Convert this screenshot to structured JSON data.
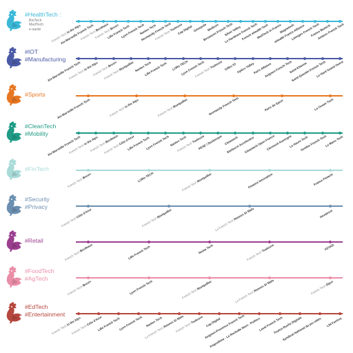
{
  "rows": [
    {
      "color": "#3bb8d8",
      "title": "#HealthTech :",
      "sub": [
        "BioTech",
        "MedTech",
        "e-santé"
      ],
      "labels": [
        {
          "pre": "French Tech",
          "name": "in the Alps"
        },
        {
          "pre": "",
          "name": "Aix-Marseille French Tech"
        },
        {
          "pre": "French Tech",
          "name": "Bordeaux"
        },
        {
          "pre": "French Tech",
          "name": "Brest+"
        },
        {
          "pre": "",
          "name": "Lille French Tech"
        },
        {
          "pre": "",
          "name": "Lyon French Tech"
        },
        {
          "pre": "",
          "name": "Nantes Tech"
        },
        {
          "pre": "",
          "name": "Normandy French Tech"
        },
        {
          "pre": "French Tech",
          "name": "Toulouse"
        },
        {
          "pre": "",
          "name": "Cap Digital"
        },
        {
          "pre": "",
          "name": "Génopole"
        },
        {
          "pre": "",
          "name": "Medicen"
        },
        {
          "pre": "",
          "name": "Besançon French Tech"
        },
        {
          "pre": "",
          "name": "Silver Valley"
        },
        {
          "pre": "",
          "name": "Le Hardware French Tech"
        },
        {
          "pre": "",
          "name": "French eHealth Tech"
        },
        {
          "pre": "",
          "name": "MedTech in France"
        },
        {
          "pre": "",
          "name": "Magnetech"
        },
        {
          "pre": "",
          "name": "eHealth France Alliance"
        },
        {
          "pre": "",
          "name": "Limoges French Tech"
        },
        {
          "pre": "",
          "name": "France Biotech"
        },
        {
          "pre": "",
          "name": "Amiens French Tech"
        }
      ]
    },
    {
      "color": "#4a5aa6",
      "title": "#IOT",
      "title2": "#Manufacturing",
      "labels": [
        {
          "pre": "",
          "name": "Aix-Marseille French Tech"
        },
        {
          "pre": "French Tech",
          "name": "in the Alps"
        },
        {
          "pre": "French Tech",
          "name": "Brest+"
        },
        {
          "pre": "French Tech",
          "name": "Montpellier"
        },
        {
          "pre": "",
          "name": "Nantes Tech"
        },
        {
          "pre": "",
          "name": "Lille French Tech"
        },
        {
          "pre": "",
          "name": "LORn TECH"
        },
        {
          "pre": "",
          "name": "Lyon French Tech"
        },
        {
          "pre": "French Tech",
          "name": "Toulouse"
        },
        {
          "pre": "",
          "name": "Gilles IO"
        },
        {
          "pre": "",
          "name": "Optics Valley"
        },
        {
          "pre": "",
          "name": "Paris Alliance"
        },
        {
          "pre": "",
          "name": "Avignon French Tech"
        },
        {
          "pre": "",
          "name": "Saint-Etienne"
        },
        {
          "pre": "",
          "name": "Saint-Quentin French Tech"
        },
        {
          "pre": "",
          "name": "Le Hard Grand Ouest"
        }
      ]
    },
    {
      "color": "#e87722",
      "title": "#Sports",
      "labels": [
        {
          "pre": "",
          "name": "Aix-Marseille French Tech"
        },
        {
          "pre": "French Tech",
          "name": "in the Alps"
        },
        {
          "pre": "French Tech",
          "name": "Montpellier"
        },
        {
          "pre": "",
          "name": "Normandy French Tech"
        },
        {
          "pre": "",
          "name": "Paris du Sport"
        },
        {
          "pre": "",
          "name": "La Ocean Tech"
        }
      ]
    },
    {
      "color": "#1f9b85",
      "title": "#CleanTech",
      "title2": "#Mobility",
      "labels": [
        {
          "pre": "",
          "name": "Aix-Marseille French Tech"
        },
        {
          "pre": "French Tech",
          "name": "in the Alps"
        },
        {
          "pre": "French Tech",
          "name": "Bordeaux"
        },
        {
          "pre": "French Tech",
          "name": "Côte d'Azur"
        },
        {
          "pre": "",
          "name": "Lille French Tech"
        },
        {
          "pre": "",
          "name": "Lyon French Tech"
        },
        {
          "pre": "",
          "name": "Nantes Tech"
        },
        {
          "pre": "French Tech",
          "name": "Toulouse"
        },
        {
          "pre": "",
          "name": "PEXE / Dunkerque"
        },
        {
          "pre": "",
          "name": "Cleantech"
        },
        {
          "pre": "",
          "name": "Starburst Accelerator"
        },
        {
          "pre": "",
          "name": "Cleantech Open France"
        },
        {
          "pre": "",
          "name": "Clermont Auvergne"
        },
        {
          "pre": "",
          "name": "Le Havre Tech"
        },
        {
          "pre": "",
          "name": "Vendée French Tech"
        },
        {
          "pre": "",
          "name": "Le Mans Tech"
        }
      ]
    },
    {
      "color": "#a8dbd8",
      "title": "#FinTech",
      "labels": [
        {
          "pre": "French Tech",
          "name": "Brest+"
        },
        {
          "pre": "",
          "name": "LORn TECH"
        },
        {
          "pre": "French Tech",
          "name": "Montpellier"
        },
        {
          "pre": "",
          "name": "Finance Innovation"
        },
        {
          "pre": "",
          "name": "France Fintech"
        }
      ]
    },
    {
      "color": "#6b8fb0",
      "title": "#Security",
      "title2": "#Privacy",
      "labels": [
        {
          "pre": "French Tech",
          "name": "Côte d'Azur"
        },
        {
          "pre": "French Tech",
          "name": "Montpellier"
        },
        {
          "pre": "La French Tech",
          "name": "Rennes St Malo"
        },
        {
          "pre": "",
          "name": "Hexatrust"
        }
      ]
    },
    {
      "color": "#9b3f8f",
      "title": "#Retail",
      "labels": [
        {
          "pre": "French Tech",
          "name": "Bordeaux"
        },
        {
          "pre": "",
          "name": "Lille French Tech"
        },
        {
          "pre": "",
          "name": "Numa Tech"
        },
        {
          "pre": "French Tech",
          "name": "Toulouse"
        },
        {
          "pre": "",
          "name": "FEVAD"
        }
      ]
    },
    {
      "color": "#ea8ea8",
      "title": "#FoodTech",
      "title2": "#AgTech",
      "labels": [
        {
          "pre": "French Tech",
          "name": "Brest+"
        },
        {
          "pre": "",
          "name": "Lyon French Tech"
        },
        {
          "pre": "French Tech",
          "name": "Montpellier"
        },
        {
          "pre": "La French Tech",
          "name": "Rennes St Malo"
        },
        {
          "pre": "French Tech",
          "name": "Dijon"
        }
      ]
    },
    {
      "color": "#b5473e",
      "title": "#EdTech",
      "title2": "#Entertainment",
      "labels": [
        {
          "pre": "French Tech",
          "name": "in the Alps"
        },
        {
          "pre": "French Tech",
          "name": "Côte d'Azur"
        },
        {
          "pre": "",
          "name": "Lille French Tech"
        },
        {
          "pre": "",
          "name": "Lyon French Tech"
        },
        {
          "pre": "",
          "name": "Nantes Tech"
        },
        {
          "pre": "La French Tech",
          "name": "Rennes St Malo"
        },
        {
          "pre": "French Tech",
          "name": "Toulouse"
        },
        {
          "pre": "",
          "name": "Cap Digital"
        },
        {
          "pre": "",
          "name": "Avignon-Provence French Tech"
        },
        {
          "pre": "",
          "name": "Angoulême - La Rochelle Niort - Poitiers"
        },
        {
          "pre": "",
          "name": "Laval French Tech"
        },
        {
          "pre": "",
          "name": "Toulon Ruche Digitale"
        },
        {
          "pre": "",
          "name": "Syndicat National du jeu vidéo"
        },
        {
          "pre": "",
          "name": "LNI Factory"
        }
      ]
    }
  ]
}
